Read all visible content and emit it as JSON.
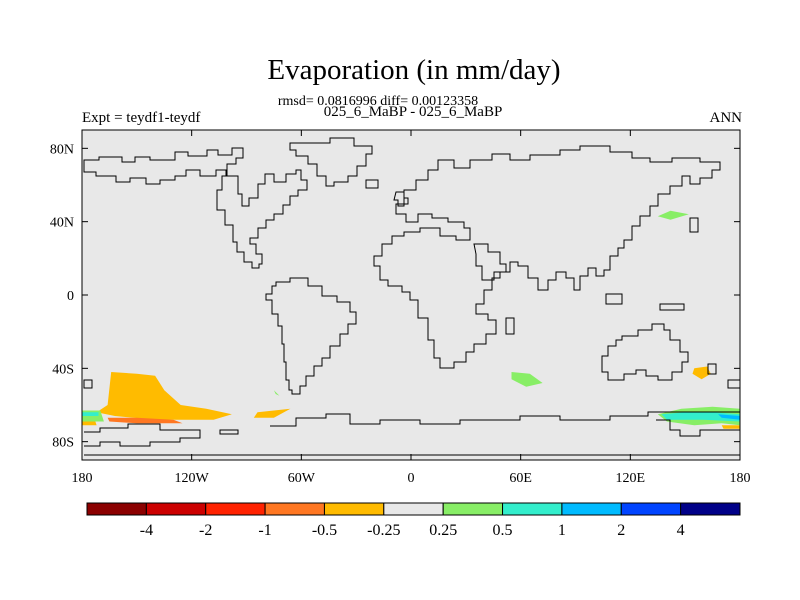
{
  "title": "Evaporation (in mm/day)",
  "stats": "rmsd= 0.0816996 diff= 0.00123358",
  "subtitle": "025_6_MaBP - 025_6_MaBP",
  "left_label": "Expt = teydf1-teydf",
  "right_label": "ANN",
  "map": {
    "projection": "cylindrical-equidistant",
    "lon_range": [
      -180,
      180
    ],
    "lat_range": [
      -90,
      90
    ],
    "background_color": "#e8e8e8",
    "coastline_color": "#000000",
    "x_ticks": [
      {
        "lon": -180,
        "label": "180"
      },
      {
        "lon": -120,
        "label": "120W"
      },
      {
        "lon": -60,
        "label": "60W"
      },
      {
        "lon": 0,
        "label": "0"
      },
      {
        "lon": 60,
        "label": "60E"
      },
      {
        "lon": 120,
        "label": "120E"
      },
      {
        "lon": 180,
        "label": "180"
      }
    ],
    "y_ticks": [
      {
        "lat": 80,
        "label": "80N"
      },
      {
        "lat": 40,
        "label": "40N"
      },
      {
        "lat": 0,
        "label": "0"
      },
      {
        "lat": -40,
        "label": "40S"
      },
      {
        "lat": -80,
        "label": "80S"
      }
    ]
  },
  "colorbar": {
    "colors": [
      "#8b0000",
      "#cc0000",
      "#ff2200",
      "#ff7722",
      "#ffbb00",
      "#e8e8e8",
      "#88ee66",
      "#33eecc",
      "#00bbff",
      "#0044ff",
      "#000088"
    ],
    "labels": [
      {
        "after_box": 1,
        "text": "-4"
      },
      {
        "after_box": 2,
        "text": "-2"
      },
      {
        "after_box": 3,
        "text": "-1"
      },
      {
        "after_box": 4,
        "text": "-0.5"
      },
      {
        "after_box": 5,
        "text": "-0.25"
      },
      {
        "after_box": 6,
        "text": "0.25"
      },
      {
        "after_box": 7,
        "text": "0.5"
      },
      {
        "after_box": 8,
        "text": "1"
      },
      {
        "after_box": 9,
        "text": "2"
      },
      {
        "after_box": 10,
        "text": "4"
      }
    ]
  },
  "anomalies": [
    {
      "name": "south-pacific-negative",
      "sign": "negative",
      "color": "#ffbb00",
      "points": [
        [
          -164,
          -42
        ],
        [
          -150,
          -43
        ],
        [
          -140,
          -44
        ],
        [
          -135,
          -52
        ],
        [
          -126,
          -60
        ],
        [
          -112,
          -62
        ],
        [
          -98,
          -65
        ],
        [
          -108,
          -68
        ],
        [
          -140,
          -68
        ],
        [
          -162,
          -66
        ],
        [
          -172,
          -64
        ],
        [
          -166,
          -60
        ]
      ]
    },
    {
      "name": "south-pacific-core",
      "sign": "negative",
      "color": "#ff7722",
      "points": [
        [
          -166,
          -67
        ],
        [
          -150,
          -67
        ],
        [
          -130,
          -68
        ],
        [
          -125,
          -70
        ],
        [
          -150,
          -70
        ],
        [
          -165,
          -69
        ]
      ]
    },
    {
      "name": "south-atlantic-west-negative",
      "sign": "negative",
      "color": "#ffbb00",
      "points": [
        [
          -84,
          -64
        ],
        [
          -66,
          -62
        ],
        [
          -75,
          -67
        ],
        [
          -86,
          -67
        ]
      ]
    },
    {
      "name": "dateline-negative",
      "sign": "negative",
      "color": "#ffbb00",
      "points": [
        [
          -180,
          -69
        ],
        [
          -173,
          -68
        ],
        [
          -172,
          -71
        ],
        [
          -180,
          -71
        ]
      ]
    },
    {
      "name": "east-australia-negative",
      "sign": "negative",
      "color": "#ffbb00",
      "points": [
        [
          155,
          -40
        ],
        [
          162,
          -39
        ],
        [
          164,
          -43
        ],
        [
          159,
          -46
        ],
        [
          154,
          -43
        ]
      ]
    },
    {
      "name": "far-east-negative",
      "sign": "negative",
      "color": "#ffbb00",
      "points": [
        [
          170,
          -71
        ],
        [
          180,
          -71
        ],
        [
          180,
          -73
        ],
        [
          171,
          -73
        ]
      ]
    },
    {
      "name": "dateline-positive",
      "sign": "positive",
      "color": "#88ee66",
      "points": [
        [
          -180,
          -63
        ],
        [
          -170,
          -63
        ],
        [
          -168,
          -69
        ],
        [
          -180,
          -69
        ]
      ]
    },
    {
      "name": "dateline-positive-core",
      "sign": "positive",
      "color": "#33eecc",
      "points": [
        [
          -180,
          -64
        ],
        [
          -171,
          -64
        ],
        [
          -171,
          -66
        ],
        [
          -180,
          -66
        ]
      ]
    },
    {
      "name": "north-pacific-positive",
      "sign": "positive",
      "color": "#88ee66",
      "points": [
        [
          135,
          43
        ],
        [
          142,
          46
        ],
        [
          152,
          44
        ],
        [
          142,
          41
        ]
      ]
    },
    {
      "name": "south-indian-positive",
      "sign": "positive",
      "color": "#88ee66",
      "points": [
        [
          55,
          -42
        ],
        [
          65,
          -43
        ],
        [
          72,
          -48
        ],
        [
          63,
          -50
        ],
        [
          55,
          -46
        ]
      ]
    },
    {
      "name": "south-atlantic-speck",
      "sign": "positive",
      "color": "#88ee66",
      "points": [
        [
          -75,
          -52
        ],
        [
          -72,
          -55
        ],
        [
          -74,
          -54
        ]
      ]
    },
    {
      "name": "southern-ocean-positive",
      "sign": "positive",
      "color": "#88ee66",
      "points": [
        [
          135,
          -65
        ],
        [
          148,
          -62
        ],
        [
          165,
          -61
        ],
        [
          180,
          -62
        ],
        [
          180,
          -71
        ],
        [
          170,
          -70
        ],
        [
          155,
          -71
        ],
        [
          140,
          -69
        ]
      ]
    },
    {
      "name": "southern-ocean-core",
      "sign": "positive",
      "color": "#33eecc",
      "points": [
        [
          137,
          -65
        ],
        [
          150,
          -64
        ],
        [
          165,
          -64
        ],
        [
          180,
          -65
        ],
        [
          180,
          -69
        ],
        [
          160,
          -68
        ],
        [
          140,
          -68
        ]
      ]
    },
    {
      "name": "southern-ocean-peak",
      "sign": "positive",
      "color": "#00bbff",
      "points": [
        [
          168,
          -65
        ],
        [
          180,
          -66
        ],
        [
          180,
          -68
        ],
        [
          170,
          -67
        ]
      ]
    }
  ]
}
